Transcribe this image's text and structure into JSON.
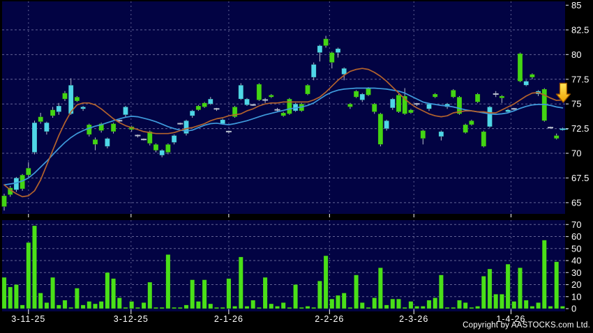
{
  "page": {
    "copyright": "Copyright by AASTOCKS.com Ltd."
  },
  "colors": {
    "page_bg": "#000000",
    "panel_bg": "#020343",
    "grid": "#8585b2",
    "up_candle": "#43d514",
    "down_candle": "#4fd6e8",
    "neutral_mark": "#b9c0cd",
    "wick": "#b9c0cd",
    "volume_bar": "#4ae019",
    "ma_fast": "#b4632c",
    "ma_slow": "#3f9bdc",
    "axis_text": "#ffffff",
    "axis_tick": "#c8c8d8",
    "arrow_fill_top": "#ffe558",
    "arrow_fill_bottom": "#f0a000",
    "arrow_border": "#995200",
    "last_price_color": "#4fd6e8"
  },
  "chart_data": {
    "type": "candlestick",
    "title": "",
    "legend": "none",
    "grid": "dashed",
    "panels": [
      "price",
      "volume"
    ],
    "price_axis": {
      "side": "right",
      "min": 64.2,
      "max": 85,
      "tick_values": [
        85,
        82.5,
        80,
        77.5,
        75,
        72.5,
        70,
        67.5,
        65
      ],
      "tick_labels": [
        "85",
        "82.5",
        "80",
        "77.5",
        "75",
        "72.5",
        "70",
        "67.5",
        "65"
      ]
    },
    "volume_axis": {
      "side": "right",
      "min": 0,
      "max": 70,
      "tick_values": [
        70,
        60,
        50,
        40,
        30,
        20,
        10,
        0
      ],
      "tick_labels": [
        "70",
        "60",
        "50",
        "40",
        "30",
        "20",
        "10",
        "0"
      ]
    },
    "x_axis": {
      "ticks": [
        {
          "label": "3-11-25",
          "index": 4
        },
        {
          "label": "3-12-25",
          "index": 20.9
        },
        {
          "label": "2-1-26",
          "index": 37
        },
        {
          "label": "2-2-26",
          "index": 53.6
        },
        {
          "label": "2-3-26",
          "index": 67.5
        },
        {
          "label": "1-4-26",
          "index": 83.5
        }
      ]
    },
    "candles_format": [
      "type(g=up,c=down,d=doji)",
      "open",
      "high",
      "low",
      "close",
      "volume"
    ],
    "candles": [
      [
        "g",
        64.6,
        65.9,
        64.2,
        65.7,
        26
      ],
      [
        "g",
        65.8,
        66.7,
        65.6,
        66.5,
        18
      ],
      [
        "c",
        67.5,
        67.6,
        66.1,
        66.3,
        20
      ],
      [
        "g",
        66.4,
        67.9,
        66.2,
        67.8,
        3
      ],
      [
        "g",
        67.8,
        69.1,
        67.6,
        68.5,
        55
      ],
      [
        "c",
        73.1,
        73.3,
        69.9,
        70.1,
        69
      ],
      [
        "g",
        73.2,
        74.1,
        73.0,
        73.7,
        13
      ],
      [
        "c",
        73.1,
        73.2,
        71.9,
        72.2,
        5
      ],
      [
        "g",
        73.8,
        74.7,
        73.6,
        74.4,
        26
      ],
      [
        "c",
        74.8,
        75.1,
        73.9,
        74.2,
        3
      ],
      [
        "g",
        75.5,
        76.3,
        75.3,
        76.1,
        7
      ],
      [
        "c",
        76.9,
        77.6,
        73.9,
        74.0,
        1
      ],
      [
        "g",
        75.3,
        75.8,
        75.2,
        75.7,
        17
      ],
      [
        "c",
        74.7,
        74.8,
        74.3,
        74.5,
        3
      ],
      [
        "g",
        71.9,
        73.0,
        71.7,
        72.9,
        6
      ],
      [
        "g",
        70.9,
        71.6,
        70.3,
        71.4,
        4
      ],
      [
        "g",
        72.3,
        73.1,
        72.1,
        73.0,
        6
      ],
      [
        "c",
        71.5,
        71.6,
        70.5,
        70.7,
        30
      ],
      [
        "g",
        72.2,
        73.1,
        72.0,
        73.0,
        25
      ],
      [
        "d",
        73.3,
        73.4,
        73.2,
        73.3,
        9
      ],
      [
        "c",
        74.7,
        74.8,
        73.7,
        73.9,
        1
      ],
      [
        "g",
        72.4,
        72.8,
        72.2,
        72.7,
        6
      ],
      [
        "d",
        71.8,
        71.9,
        71.6,
        71.8,
        1
      ],
      [
        "d",
        71.4,
        71.5,
        71.3,
        71.4,
        5
      ],
      [
        "g",
        71.0,
        72.3,
        70.8,
        72.2,
        22
      ],
      [
        "g",
        70.3,
        71.0,
        70.1,
        70.9,
        1
      ],
      [
        "c",
        70.3,
        70.4,
        69.6,
        69.8,
        1
      ],
      [
        "g",
        70.1,
        71.0,
        69.9,
        70.9,
        45
      ],
      [
        "c",
        71.8,
        71.9,
        70.9,
        71.1,
        1
      ],
      [
        "d",
        73.0,
        73.1,
        72.9,
        73.0,
        1
      ],
      [
        "c",
        73.3,
        73.4,
        71.8,
        72.0,
        3
      ],
      [
        "c",
        74.3,
        74.4,
        73.6,
        73.8,
        24
      ],
      [
        "g",
        74.4,
        74.9,
        74.3,
        74.8,
        6
      ],
      [
        "g",
        74.7,
        75.2,
        74.6,
        75.1,
        24
      ],
      [
        "c",
        75.5,
        75.7,
        74.9,
        75.0,
        4
      ],
      [
        "d",
        74.4,
        74.6,
        74.3,
        74.5,
        1
      ],
      [
        "c",
        73.4,
        73.5,
        72.9,
        73.0,
        1
      ],
      [
        "d",
        72.1,
        72.3,
        72.0,
        72.2,
        25
      ],
      [
        "g",
        73.7,
        74.8,
        73.6,
        74.7,
        2
      ],
      [
        "c",
        76.9,
        77.1,
        75.4,
        75.5,
        43
      ],
      [
        "c",
        75.5,
        75.6,
        74.8,
        74.9,
        2
      ],
      [
        "d",
        74.9,
        75.0,
        74.8,
        74.9,
        7
      ],
      [
        "g",
        75.4,
        77.1,
        75.3,
        77.0,
        1
      ],
      [
        "d",
        75.4,
        75.6,
        75.1,
        75.4,
        26
      ],
      [
        "g",
        75.7,
        76.0,
        75.6,
        75.9,
        4
      ],
      [
        "d",
        74.4,
        74.6,
        74.2,
        74.4,
        2
      ],
      [
        "g",
        73.8,
        74.2,
        73.7,
        74.1,
        5
      ],
      [
        "g",
        74.0,
        75.6,
        73.9,
        75.5,
        1
      ],
      [
        "c",
        75.0,
        75.1,
        74.2,
        74.3,
        20
      ],
      [
        "g",
        74.3,
        75.1,
        74.2,
        75.0,
        1
      ],
      [
        "g",
        76.0,
        77.0,
        75.9,
        76.9,
        2
      ],
      [
        "c",
        79.0,
        79.2,
        77.4,
        77.7,
        1
      ],
      [
        "c",
        80.9,
        81.0,
        79.3,
        80.2,
        23
      ],
      [
        "g",
        80.9,
        81.9,
        80.7,
        81.6,
        44
      ],
      [
        "g",
        79.2,
        80.3,
        78.6,
        80.2,
        8
      ],
      [
        "c",
        80.6,
        80.7,
        79.7,
        80.2,
        11
      ],
      [
        "c",
        78.6,
        78.7,
        77.4,
        78.0,
        13
      ],
      [
        "g",
        74.7,
        75.1,
        74.5,
        75.0,
        1
      ],
      [
        "g",
        75.7,
        76.4,
        75.6,
        76.3,
        28
      ],
      [
        "c",
        76.0,
        76.1,
        75.2,
        75.4,
        5
      ],
      [
        "g",
        75.9,
        76.7,
        75.8,
        76.6,
        1
      ],
      [
        "g",
        74.2,
        75.1,
        74.0,
        75.0,
        9
      ],
      [
        "g",
        70.9,
        74.1,
        70.7,
        74.0,
        34
      ],
      [
        "c",
        73.3,
        73.4,
        72.3,
        72.5,
        3
      ],
      [
        "c",
        75.5,
        75.6,
        74.4,
        74.6,
        8
      ],
      [
        "g",
        74.2,
        76.0,
        74.1,
        75.9,
        8
      ],
      [
        "g",
        74.0,
        76.6,
        73.9,
        75.8,
        1
      ],
      [
        "g",
        74.1,
        74.5,
        74.0,
        74.4,
        6
      ],
      [
        "d",
        74.9,
        75.1,
        74.8,
        75.0,
        2
      ],
      [
        "g",
        71.5,
        72.4,
        70.9,
        72.3,
        2
      ],
      [
        "c",
        75.0,
        75.1,
        74.3,
        74.5,
        7
      ],
      [
        "g",
        75.7,
        76.1,
        75.6,
        76.0,
        9
      ],
      [
        "c",
        72.2,
        72.3,
        71.3,
        71.7,
        28
      ],
      [
        "c",
        75.0,
        75.1,
        74.5,
        74.7,
        1
      ],
      [
        "g",
        75.7,
        76.5,
        75.6,
        76.4,
        1
      ],
      [
        "g",
        74.0,
        75.8,
        73.9,
        75.7,
        7
      ],
      [
        "g",
        72.1,
        73.0,
        72.0,
        72.9,
        5
      ],
      [
        "g",
        72.9,
        73.4,
        72.8,
        73.3,
        1
      ],
      [
        "g",
        75.2,
        76.1,
        75.1,
        76.0,
        2
      ],
      [
        "g",
        70.7,
        72.3,
        70.6,
        72.2,
        27
      ],
      [
        "c",
        74.7,
        74.8,
        72.6,
        72.7,
        33
      ],
      [
        "d",
        76.0,
        76.3,
        75.7,
        76.0,
        12
      ],
      [
        "g",
        75.6,
        75.9,
        75.1,
        75.8,
        12
      ],
      [
        "c",
        74.4,
        74.5,
        74.1,
        74.2,
        37
      ],
      [
        "d",
        74.5,
        74.6,
        74.4,
        74.5,
        6
      ],
      [
        "g",
        77.3,
        80.2,
        77.2,
        80.1,
        34
      ],
      [
        "c",
        77.3,
        77.4,
        76.8,
        76.9,
        7
      ],
      [
        "g",
        77.7,
        78.1,
        77.5,
        78.0,
        2
      ],
      [
        "c",
        76.3,
        76.4,
        75.8,
        76.0,
        5
      ],
      [
        "g",
        73.3,
        76.6,
        73.2,
        76.5,
        57
      ],
      [
        "d",
        72.6,
        72.7,
        72.5,
        72.6,
        2
      ],
      [
        "g",
        71.5,
        72.0,
        71.4,
        71.8,
        39
      ],
      [
        "c",
        72.5,
        72.6,
        72.3,
        72.4,
        2
      ]
    ],
    "series": [
      {
        "name": "ma-orange",
        "values": [
          66.8,
          66.3,
          65.9,
          65.6,
          65.7,
          66.2,
          67.3,
          68.8,
          70.3,
          71.8,
          73.1,
          74.2,
          74.9,
          75.1,
          75.1,
          74.9,
          74.5,
          74.0,
          73.5,
          73.1,
          72.8,
          72.6,
          72.4,
          72.2,
          72.1,
          72.0,
          72.0,
          72.0,
          72.1,
          72.3,
          72.5,
          72.6,
          72.8,
          73.0,
          73.3,
          73.5,
          73.6,
          73.8,
          73.9,
          74.0,
          74.3,
          74.5,
          74.8,
          75.0,
          75.1,
          75.1,
          75.2,
          75.2,
          75.2,
          75.2,
          75.2,
          75.4,
          75.7,
          76.2,
          76.8,
          77.4,
          77.9,
          78.3,
          78.5,
          78.6,
          78.5,
          78.2,
          77.8,
          77.3,
          76.7,
          76.1,
          75.5,
          75.0,
          74.6,
          74.3,
          74.0,
          73.8,
          73.7,
          73.8,
          74.1,
          74.2,
          74.3,
          74.3,
          74.2,
          74.2,
          74.1,
          74.1,
          74.4,
          74.7,
          75.0,
          75.4,
          75.8,
          76.1,
          76.15,
          75.9,
          75.6,
          75.35,
          75.4
        ]
      },
      {
        "name": "ma-blue",
        "values": [
          66.8,
          66.9,
          67.0,
          67.2,
          67.5,
          68.0,
          68.6,
          69.2,
          69.85,
          70.5,
          71.1,
          71.6,
          72.0,
          72.3,
          72.55,
          72.75,
          72.9,
          73.1,
          73.3,
          73.5,
          73.65,
          73.75,
          73.7,
          73.55,
          73.4,
          73.2,
          72.95,
          72.7,
          72.5,
          72.35,
          72.25,
          72.35,
          72.6,
          72.85,
          73.0,
          73.05,
          72.95,
          72.9,
          73.0,
          73.15,
          73.3,
          73.5,
          73.7,
          73.9,
          74.05,
          74.2,
          74.35,
          74.5,
          74.6,
          74.7,
          74.85,
          75.1,
          75.5,
          75.9,
          76.2,
          76.4,
          76.5,
          76.55,
          76.6,
          76.6,
          76.6,
          76.6,
          76.55,
          76.5,
          76.4,
          76.3,
          76.1,
          75.8,
          75.5,
          75.2,
          75.05,
          74.95,
          74.85,
          74.8,
          74.7,
          74.55,
          74.4,
          74.3,
          74.2,
          74.1,
          74.0,
          73.95,
          74.0,
          74.1,
          74.3,
          74.55,
          74.75,
          74.9,
          74.95,
          74.95,
          74.85,
          74.7,
          74.6
        ]
      }
    ],
    "annotations": {
      "down_arrow": {
        "x_index": 92,
        "price_top": 77.1,
        "price_tip": 75.15
      },
      "last_price_line": {
        "price": 72.45
      }
    }
  }
}
